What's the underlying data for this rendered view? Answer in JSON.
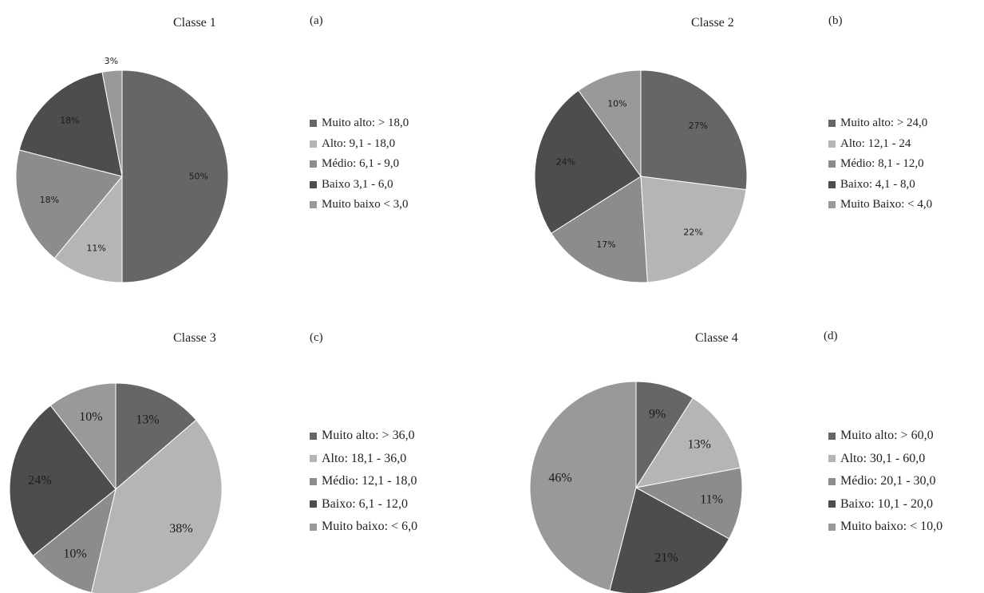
{
  "chart_data": [
    {
      "type": "pie",
      "title": "Classe  1",
      "panel_label": "(a)",
      "categories": [
        "Muito alto: > 18,0",
        "Alto: 9,1 - 18,0",
        "Médio: 6,1 - 9,0",
        "Baixo 3,1 - 6,0",
        "Muito baixo < 3,0"
      ],
      "values": [
        50,
        11,
        18,
        18,
        3
      ],
      "labels": [
        "50%",
        "11%",
        "18%",
        "18%",
        "3%"
      ],
      "colors": [
        "#666666",
        "#b5b5b5",
        "#8c8c8c",
        "#4d4d4d",
        "#999999"
      ],
      "legend": "right"
    },
    {
      "type": "pie",
      "title": "Classe  2",
      "panel_label": "(b)",
      "categories": [
        "Muito alto: > 24,0",
        "Alto: 12,1 - 24",
        "Médio: 8,1 - 12,0",
        "Baixo: 4,1 - 8,0",
        "Muito Baixo: < 4,0"
      ],
      "values": [
        27,
        22,
        17,
        24,
        10
      ],
      "labels": [
        "27%",
        "22%",
        "17%",
        "24%",
        "10%"
      ],
      "colors": [
        "#666666",
        "#b5b5b5",
        "#8c8c8c",
        "#4d4d4d",
        "#999999"
      ],
      "legend": "right"
    },
    {
      "type": "pie",
      "title": "Classe 3",
      "panel_label": "(c)",
      "categories": [
        "Muito alto: > 36,0",
        "Alto: 18,1 - 36,0",
        "Médio: 12,1 - 18,0",
        "Baixo: 6,1 - 12,0",
        "Muito baixo: < 6,0"
      ],
      "values": [
        13,
        38,
        10,
        24,
        10
      ],
      "labels": [
        "13%",
        "38%",
        "10%",
        "24%",
        "10%"
      ],
      "colors": [
        "#666666",
        "#b5b5b5",
        "#8c8c8c",
        "#4d4d4d",
        "#999999"
      ],
      "legend": "right"
    },
    {
      "type": "pie",
      "title": "Classe 4",
      "panel_label": "(d)",
      "categories": [
        "Muito alto: > 60,0",
        "Alto: 30,1 - 60,0",
        "Médio: 20,1 - 30,0",
        "Baixo: 10,1 - 20,0",
        "Muito baixo:  < 10,0"
      ],
      "values": [
        9,
        13,
        11,
        21,
        46
      ],
      "labels": [
        "9%",
        "13%",
        "11%",
        "21%",
        "46%"
      ],
      "colors": [
        "#666666",
        "#b5b5b5",
        "#8c8c8c",
        "#4d4d4d",
        "#999999"
      ],
      "legend": "right"
    }
  ]
}
